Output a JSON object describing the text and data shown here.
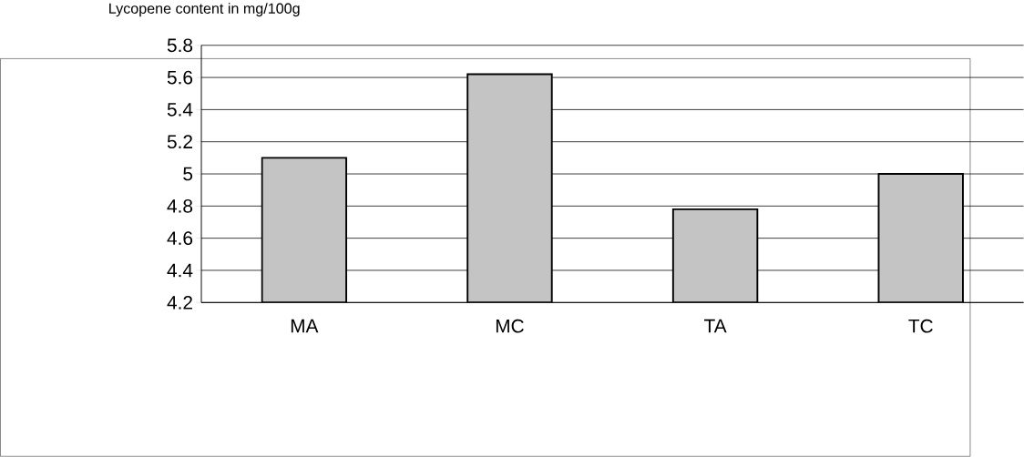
{
  "chart_data": {
    "type": "bar",
    "ylabel": "Lycopene content in mg/100g",
    "categories": [
      "MA",
      "MC",
      "TA",
      "TC"
    ],
    "values": [
      5.1,
      5.62,
      4.78,
      5.0
    ],
    "color": "#c4c4c4",
    "ylim": [
      4.2,
      5.8
    ],
    "yticks": [
      4.2,
      4.4,
      4.6,
      4.8,
      5,
      5.2,
      5.4,
      5.6,
      5.8
    ],
    "grid": "y"
  }
}
